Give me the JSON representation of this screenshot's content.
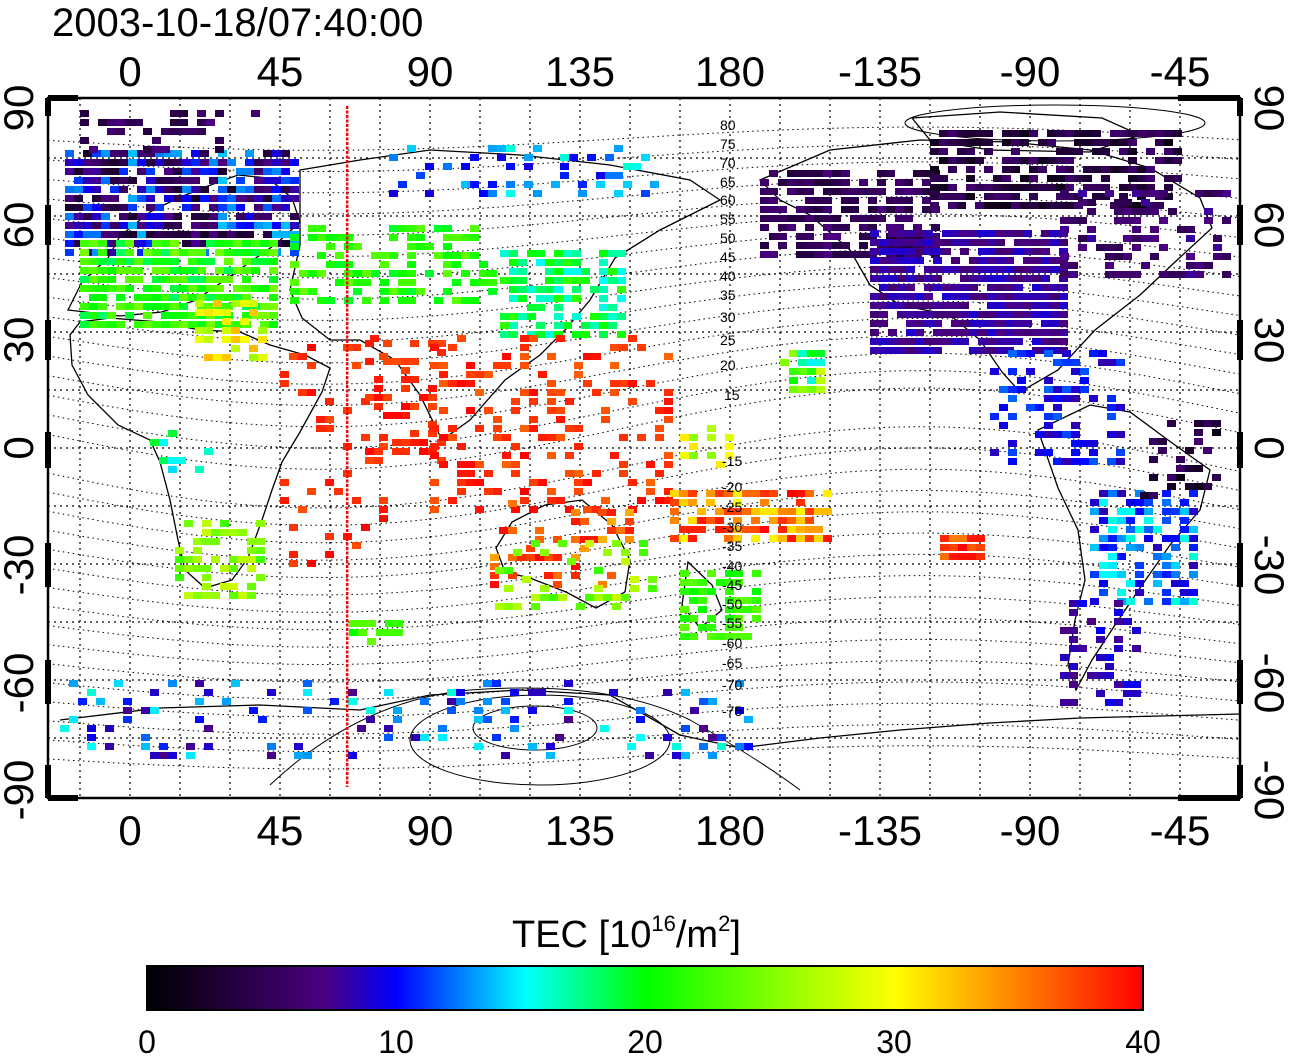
{
  "timestamp": "2003-10-18/07:40:00",
  "colorbar": {
    "title_main": "TEC  [10",
    "title_exp1": "16",
    "title_mid": "/m",
    "title_exp2": "2",
    "title_end": "]",
    "ticks": [
      "0",
      "10",
      "20",
      "30",
      "40"
    ],
    "range": [
      0,
      40
    ],
    "stops": [
      "#000000",
      "#4b0082",
      "#0000ff",
      "#00ffff",
      "#00ff00",
      "#ffff00",
      "#ff0000"
    ]
  },
  "axes": {
    "top_lon_labels": [
      "0",
      "45",
      "90",
      "135",
      "180",
      "-135",
      "-90",
      "-45"
    ],
    "bottom_lon_labels": [
      "0",
      "45",
      "90",
      "135",
      "180",
      "-135",
      "-90",
      "-45"
    ],
    "lat_labels": [
      "90",
      "60",
      "30",
      "0",
      "-30",
      "-60",
      "-90"
    ]
  },
  "contour_labels": {
    "north": [
      "80",
      "75",
      "70",
      "65",
      "60",
      "55",
      "50",
      "45",
      "40",
      "35",
      "30",
      "25",
      "20",
      "15"
    ],
    "south": [
      "-15",
      "-20",
      "-25",
      "-30",
      "-35",
      "-40",
      "-45",
      "-50",
      "-55",
      "-60",
      "-65",
      "-70",
      "-75"
    ]
  },
  "marker_line_longitude": 65,
  "colors": {
    "marker_line": "#ff0000",
    "frame": "#000000"
  }
}
